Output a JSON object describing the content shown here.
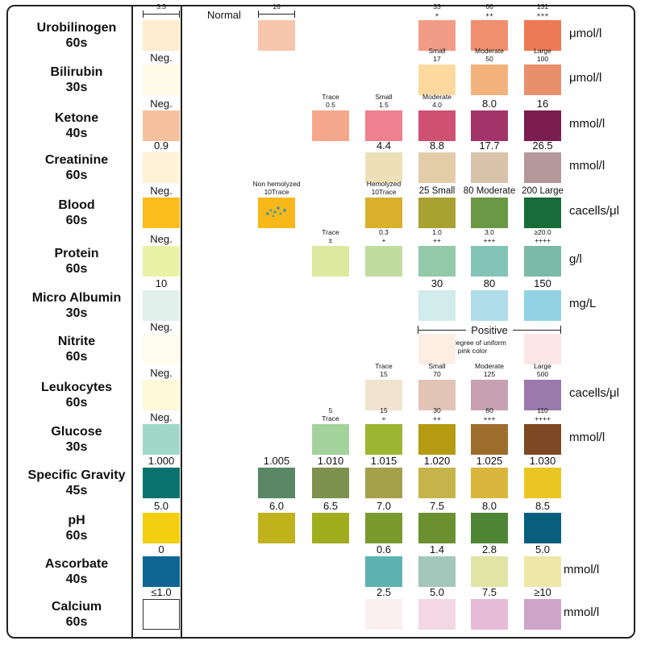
{
  "normal_label": "Normal",
  "normal_dim": "16",
  "strip_dim": "3.3",
  "positive_label": "Positive",
  "nitrite_note": "Any degree of uniform pink color",
  "rows": [
    {
      "name": [
        "Urobilinogen",
        "60s"
      ],
      "y": 25,
      "strip_label": "",
      "strip_color": "#fdeccf",
      "unit": "μmol/l",
      "pads": [
        {
          "c": "#f8c6ad",
          "col": 2
        },
        {
          "c": "#f19c87",
          "col": 5,
          "lab": [
            "33",
            "+"
          ]
        },
        {
          "c": "#f08f6e",
          "col": 6,
          "lab": [
            "66",
            "++"
          ]
        },
        {
          "c": "#ed7a56",
          "col": 7,
          "lab": [
            "131",
            "+++"
          ]
        }
      ]
    },
    {
      "name": [
        "Bilirubin",
        "30s"
      ],
      "y": 80,
      "strip_label": "Neg.",
      "strip_color": "#fffbe6",
      "unit": "μmol/l",
      "pads": [
        {
          "c": "#fdd9a0",
          "col": 5,
          "lab": [
            "Small",
            "17"
          ]
        },
        {
          "c": "#f3b27c",
          "col": 6,
          "lab": [
            "Moderate",
            "50"
          ]
        },
        {
          "c": "#e98f6b",
          "col": 7,
          "lab": [
            "Large",
            "100"
          ]
        }
      ]
    },
    {
      "name": [
        "Ketone",
        "40s"
      ],
      "y": 137,
      "strip_label": "Neg.",
      "strip_color": "#f8c19e",
      "unit": "mmol/l",
      "pads": [
        {
          "c": "#f4a78a",
          "col": 3,
          "lab": [
            "Trace",
            "0.5"
          ]
        },
        {
          "c": "#ee808f",
          "col": 4,
          "lab": [
            "Small",
            "1.5"
          ]
        },
        {
          "c": "#cf5070",
          "col": 5,
          "lab": [
            "Moderate",
            "4.0"
          ]
        },
        {
          "c": "#a2346a",
          "col": 6,
          "lab": [
            "8.0"
          ]
        },
        {
          "c": "#7b1d4f",
          "col": 7,
          "lab": [
            "16"
          ]
        }
      ]
    },
    {
      "name": [
        "Creatinine",
        "60s"
      ],
      "y": 189,
      "strip_label": "0.9",
      "strip_color": "#fff2d6",
      "unit": "mmol/l",
      "pads": [
        {
          "c": "#ede0b8",
          "col": 4,
          "lab": [
            "4.4"
          ]
        },
        {
          "c": "#e3cda9",
          "col": 5,
          "lab": [
            "8.8"
          ]
        },
        {
          "c": "#d8c3aa",
          "col": 6,
          "lab": [
            "17.7"
          ]
        },
        {
          "c": "#b5999a",
          "col": 7,
          "lab": [
            "26.5"
          ]
        }
      ]
    },
    {
      "name": [
        "Blood",
        "60s"
      ],
      "y": 245,
      "strip_label": "Neg.",
      "strip_color": "#fbbd1b",
      "unit": "cacells/μl",
      "pads": [
        {
          "c": "#f8b81a",
          "col": 2,
          "lab": [
            "Non hemolyzed",
            "10Trace"
          ]
        },
        {
          "c": "#d9af2c",
          "col": 4,
          "lab": [
            "Hemolyzed",
            "10Trace"
          ]
        },
        {
          "c": "#a8a233",
          "col": 5,
          "lab": [
            "25 Small"
          ]
        },
        {
          "c": "#6a9844",
          "col": 6,
          "lab": [
            "80 Moderate"
          ]
        },
        {
          "c": "#176c39",
          "col": 7,
          "lab": [
            "200 Large"
          ]
        }
      ]
    },
    {
      "name": [
        "Protein",
        "60s"
      ],
      "y": 305,
      "strip_label": "Neg.",
      "strip_color": "#eaf2a8",
      "unit": "g/l",
      "pads": [
        {
          "c": "#dde99f",
          "col": 3,
          "lab": [
            "Trace",
            "±"
          ]
        },
        {
          "c": "#c2dca0",
          "col": 4,
          "lab": [
            "0.3",
            "+"
          ]
        },
        {
          "c": "#92c9a9",
          "col": 5,
          "lab": [
            "1.0",
            "++"
          ]
        },
        {
          "c": "#82c4b8",
          "col": 6,
          "lab": [
            "3.0",
            "+++"
          ]
        },
        {
          "c": "#7cbaa8",
          "col": 7,
          "lab": [
            "≥20.0",
            "++++"
          ]
        }
      ]
    },
    {
      "name": [
        "Micro Albumin",
        "30s"
      ],
      "y": 360,
      "strip_label": "10",
      "strip_color": "#e2f0ec",
      "unit": "mg/L",
      "pads": [
        {
          "c": "#d1ecea",
          "col": 5,
          "lab": [
            "30"
          ]
        },
        {
          "c": "#b0ddea",
          "col": 6,
          "lab": [
            "80"
          ]
        },
        {
          "c": "#92d2e4",
          "col": 7,
          "lab": [
            "150"
          ]
        }
      ]
    },
    {
      "name": [
        "Nitrite",
        "60s"
      ],
      "y": 414,
      "strip_label": "Neg.",
      "strip_color": "#fffbee",
      "unit": "",
      "pads": [
        {
          "c": "#fdede2",
          "col": 5
        },
        {
          "c": "#fde6e6",
          "col": 7
        }
      ]
    },
    {
      "name": [
        "Leukocytes",
        "60s"
      ],
      "y": 471,
      "strip_label": "Neg.",
      "strip_color": "#fcf8d8",
      "unit": "cacells/μl",
      "pads": [
        {
          "c": "#f0e4cf",
          "col": 4,
          "lab": [
            "Trace",
            "15"
          ]
        },
        {
          "c": "#e2c4b7",
          "col": 5,
          "lab": [
            "Small",
            "70"
          ]
        },
        {
          "c": "#c7a1b1",
          "col": 6,
          "lab": [
            "Moderate",
            "125"
          ]
        },
        {
          "c": "#9b79ad",
          "col": 7,
          "lab": [
            "Large",
            "500"
          ]
        }
      ]
    },
    {
      "name": [
        "Glucose",
        "30s"
      ],
      "y": 526,
      "strip_label": "Neg.",
      "strip_color": "#9fd8c8",
      "unit": "mmol/l",
      "pads": [
        {
          "c": "#a2d39a",
          "col": 3,
          "lab": [
            "5",
            "Trace"
          ]
        },
        {
          "c": "#9db530",
          "col": 4,
          "lab": [
            "15",
            "+"
          ]
        },
        {
          "c": "#b49b12",
          "col": 5,
          "lab": [
            "30",
            "++"
          ]
        },
        {
          "c": "#9d6d2c",
          "col": 6,
          "lab": [
            "60",
            "+++"
          ]
        },
        {
          "c": "#7f4824",
          "col": 7,
          "lab": [
            "110",
            "++++"
          ]
        }
      ]
    },
    {
      "name": [
        "Specific Gravity",
        "45s"
      ],
      "y": 580,
      "strip_label": "1.000",
      "strip_color": "#08736d",
      "unit": "",
      "pads": [
        {
          "c": "#5a8765",
          "col": 2,
          "lab": [
            "1.005"
          ]
        },
        {
          "c": "#7d924e",
          "col": 3,
          "lab": [
            "1.010"
          ]
        },
        {
          "c": "#a5a04c",
          "col": 4,
          "lab": [
            "1.015"
          ]
        },
        {
          "c": "#c5b44b",
          "col": 5,
          "lab": [
            "1.020"
          ]
        },
        {
          "c": "#dab73c",
          "col": 6,
          "lab": [
            "1.025"
          ]
        },
        {
          "c": "#eac623",
          "col": 7,
          "lab": [
            "1.030"
          ]
        }
      ]
    },
    {
      "name": [
        "pH",
        "60s"
      ],
      "y": 636,
      "strip_label": "5.0",
      "strip_color": "#f3cf0f",
      "unit": "",
      "pads": [
        {
          "c": "#bfb21b",
          "col": 2,
          "lab": [
            "6.0"
          ]
        },
        {
          "c": "#a0ad1c",
          "col": 3,
          "lab": [
            "6.5"
          ]
        },
        {
          "c": "#7a9a2e",
          "col": 4,
          "lab": [
            "7.0"
          ]
        },
        {
          "c": "#6b9030",
          "col": 5,
          "lab": [
            "7.5"
          ]
        },
        {
          "c": "#4e8535",
          "col": 6,
          "lab": [
            "8.0"
          ]
        },
        {
          "c": "#085e7d",
          "col": 7,
          "lab": [
            "8.5"
          ]
        }
      ]
    },
    {
      "name": [
        "Ascorbate",
        "40s"
      ],
      "y": 690,
      "strip_label": "0",
      "strip_color": "#0e6693",
      "unit": "mmol/l",
      "pads": [
        {
          "c": "#5eb2b2",
          "col": 4,
          "lab": [
            "0.6"
          ]
        },
        {
          "c": "#a3c7bb",
          "col": 5,
          "lab": [
            "1.4"
          ]
        },
        {
          "c": "#e1e4a5",
          "col": 6,
          "lab": [
            "2.8"
          ]
        },
        {
          "c": "#eee7a6",
          "col": 7,
          "lab": [
            "5.0"
          ]
        }
      ]
    },
    {
      "name": [
        "Calcium",
        "60s"
      ],
      "y": 743,
      "strip_label": "≤1.0",
      "strip_color": "#ffffff",
      "unit": "mmol/l",
      "pads": [
        {
          "c": "#fbeff0",
          "col": 4,
          "lab": [
            "2.5"
          ]
        },
        {
          "c": "#f3d8e3",
          "col": 5,
          "lab": [
            "5.0"
          ]
        },
        {
          "c": "#e6bbd7",
          "col": 6,
          "lab": [
            "7.5"
          ]
        },
        {
          "c": "#cda5c8",
          "col": 7,
          "lab": [
            "≥10"
          ]
        }
      ]
    }
  ]
}
